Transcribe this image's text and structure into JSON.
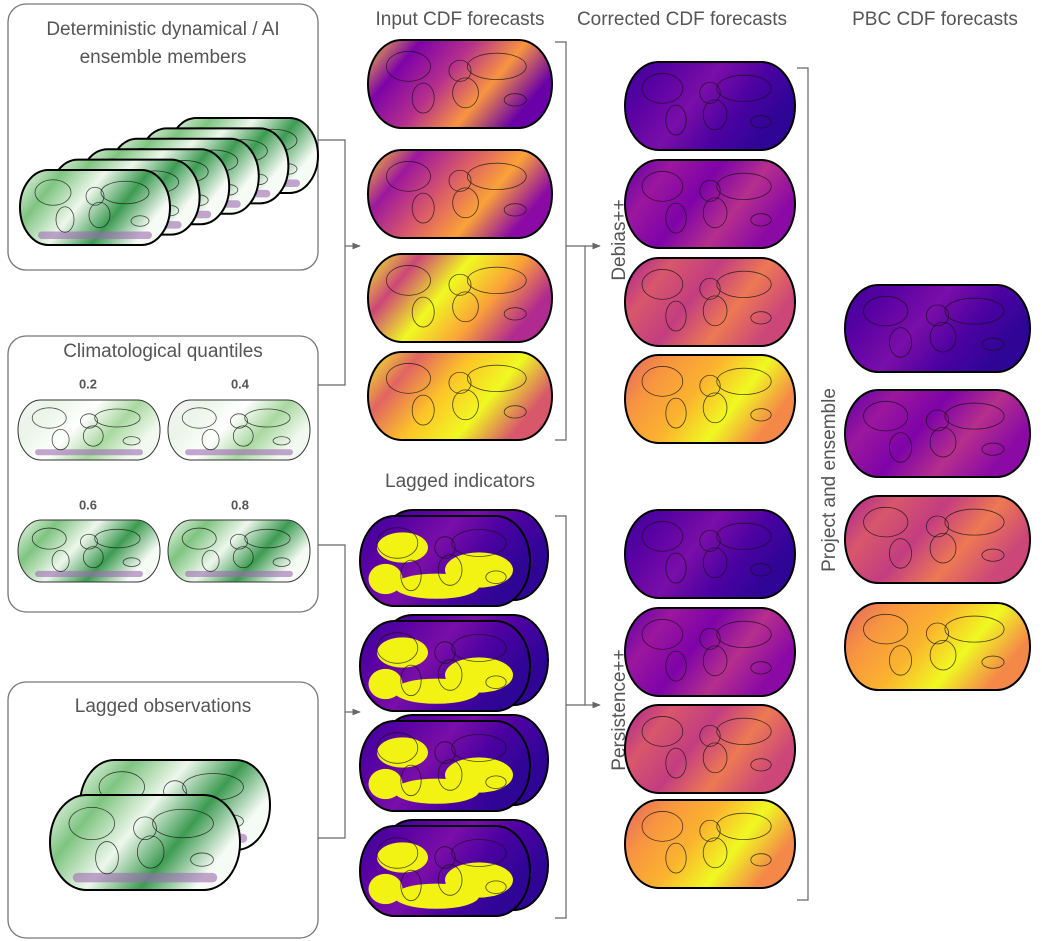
{
  "panels": [
    {
      "title": [
        "Deterministic dynamical / AI",
        "ensemble members"
      ]
    },
    {
      "title": "Climatological quantiles",
      "quantiles": [
        "0.2",
        "0.4",
        "0.6",
        "0.8"
      ]
    },
    {
      "title": "Lagged observations"
    }
  ],
  "columns": {
    "input": "Input CDF forecasts",
    "indicators": "Lagged indicators",
    "corrected": "Corrected CDF forecasts",
    "pbc": "PBC CDF forecasts"
  },
  "methods": {
    "debias": "Debias++",
    "persistence": "Persistence++",
    "project": "Project and ensemble"
  }
}
